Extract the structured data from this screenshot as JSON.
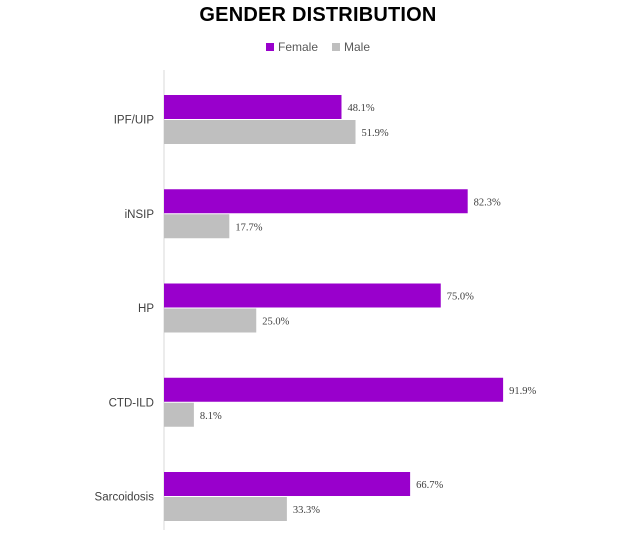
{
  "chart_data": {
    "type": "bar",
    "orientation": "horizontal",
    "title": "GENDER DISTRIBUTION",
    "categories": [
      "IPF/UIP",
      "iNSIP",
      "HP",
      "CTD-ILD",
      "Sarcoidosis"
    ],
    "series": [
      {
        "name": "Female",
        "color": "#9900CC",
        "values": [
          48.1,
          82.3,
          75.0,
          91.9,
          66.7
        ],
        "labels": [
          "48.1%",
          "82.3%",
          "75.0%",
          "91.9%",
          "66.7%"
        ]
      },
      {
        "name": "Male",
        "color": "#BFBFBF",
        "values": [
          51.9,
          17.7,
          25.0,
          8.1,
          33.3
        ],
        "labels": [
          "51.9%",
          "17.7%",
          "25.0%",
          "8.1%",
          "33.3%"
        ]
      }
    ],
    "xlim": [
      0,
      100
    ],
    "grid": false,
    "legend_position": "top"
  }
}
